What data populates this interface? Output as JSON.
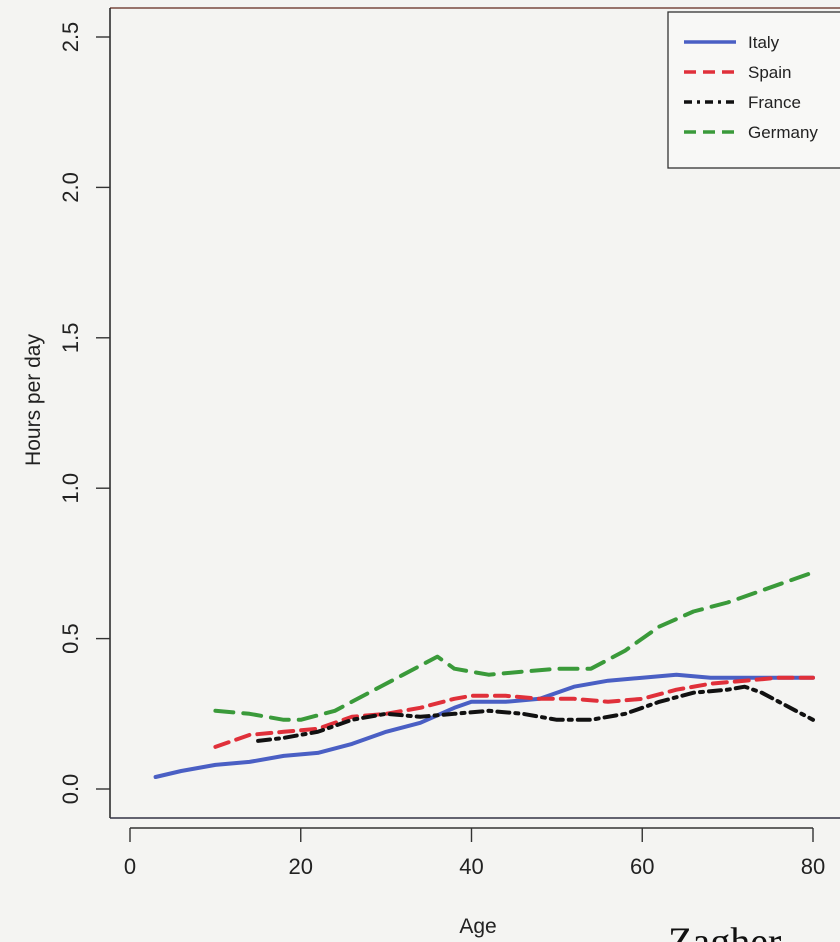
{
  "chart_data": {
    "type": "line",
    "title": "",
    "xlabel": "Age",
    "ylabel": "Hours per day",
    "xlim": [
      0,
      80
    ],
    "ylim": [
      0,
      2.5
    ],
    "xticks": [
      0,
      20,
      40,
      60,
      80
    ],
    "yticks": [
      0.0,
      0.5,
      1.0,
      1.5,
      2.0,
      2.5
    ],
    "xtick_labels": [
      "0",
      "20",
      "40",
      "60",
      "80"
    ],
    "ytick_labels": [
      "0.0",
      "0.5",
      "1.0",
      "1.5",
      "2.0",
      "2.5"
    ],
    "grid": false,
    "legend_position": "top-right",
    "series": [
      {
        "name": "Italy",
        "color": "#4a5fc4",
        "dash": "solid",
        "x": [
          3,
          6,
          10,
          14,
          18,
          22,
          26,
          30,
          34,
          38,
          40,
          44,
          48,
          52,
          56,
          60,
          64,
          68,
          72,
          76,
          80
        ],
        "y": [
          0.04,
          0.06,
          0.08,
          0.09,
          0.11,
          0.12,
          0.15,
          0.19,
          0.22,
          0.27,
          0.29,
          0.29,
          0.3,
          0.34,
          0.36,
          0.37,
          0.38,
          0.37,
          0.37,
          0.37,
          0.37
        ]
      },
      {
        "name": "Spain",
        "color": "#e0303a",
        "dash": "dashed",
        "x": [
          10,
          14,
          18,
          22,
          26,
          30,
          34,
          38,
          40,
          44,
          48,
          52,
          56,
          60,
          64,
          68,
          72,
          76,
          80
        ],
        "y": [
          0.14,
          0.18,
          0.19,
          0.2,
          0.24,
          0.25,
          0.27,
          0.3,
          0.31,
          0.31,
          0.3,
          0.3,
          0.29,
          0.3,
          0.33,
          0.35,
          0.36,
          0.37,
          0.37
        ]
      },
      {
        "name": "France",
        "color": "#111111",
        "dash": "dotdash",
        "x": [
          15,
          18,
          22,
          26,
          30,
          34,
          38,
          42,
          46,
          50,
          54,
          58,
          62,
          66,
          70,
          72,
          74,
          76,
          78,
          80
        ],
        "y": [
          0.16,
          0.17,
          0.19,
          0.23,
          0.25,
          0.24,
          0.25,
          0.26,
          0.25,
          0.23,
          0.23,
          0.25,
          0.29,
          0.32,
          0.33,
          0.34,
          0.32,
          0.29,
          0.26,
          0.23
        ]
      },
      {
        "name": "Germany",
        "color": "#3a9a3a",
        "dash": "longdash",
        "x": [
          10,
          14,
          18,
          20,
          24,
          28,
          32,
          36,
          38,
          42,
          46,
          50,
          54,
          58,
          62,
          66,
          70,
          74,
          80
        ],
        "y": [
          0.26,
          0.25,
          0.23,
          0.23,
          0.26,
          0.32,
          0.38,
          0.44,
          0.4,
          0.38,
          0.39,
          0.4,
          0.4,
          0.46,
          0.54,
          0.59,
          0.62,
          0.66,
          0.72
        ]
      }
    ]
  },
  "footer": {
    "text": "Zagher"
  }
}
